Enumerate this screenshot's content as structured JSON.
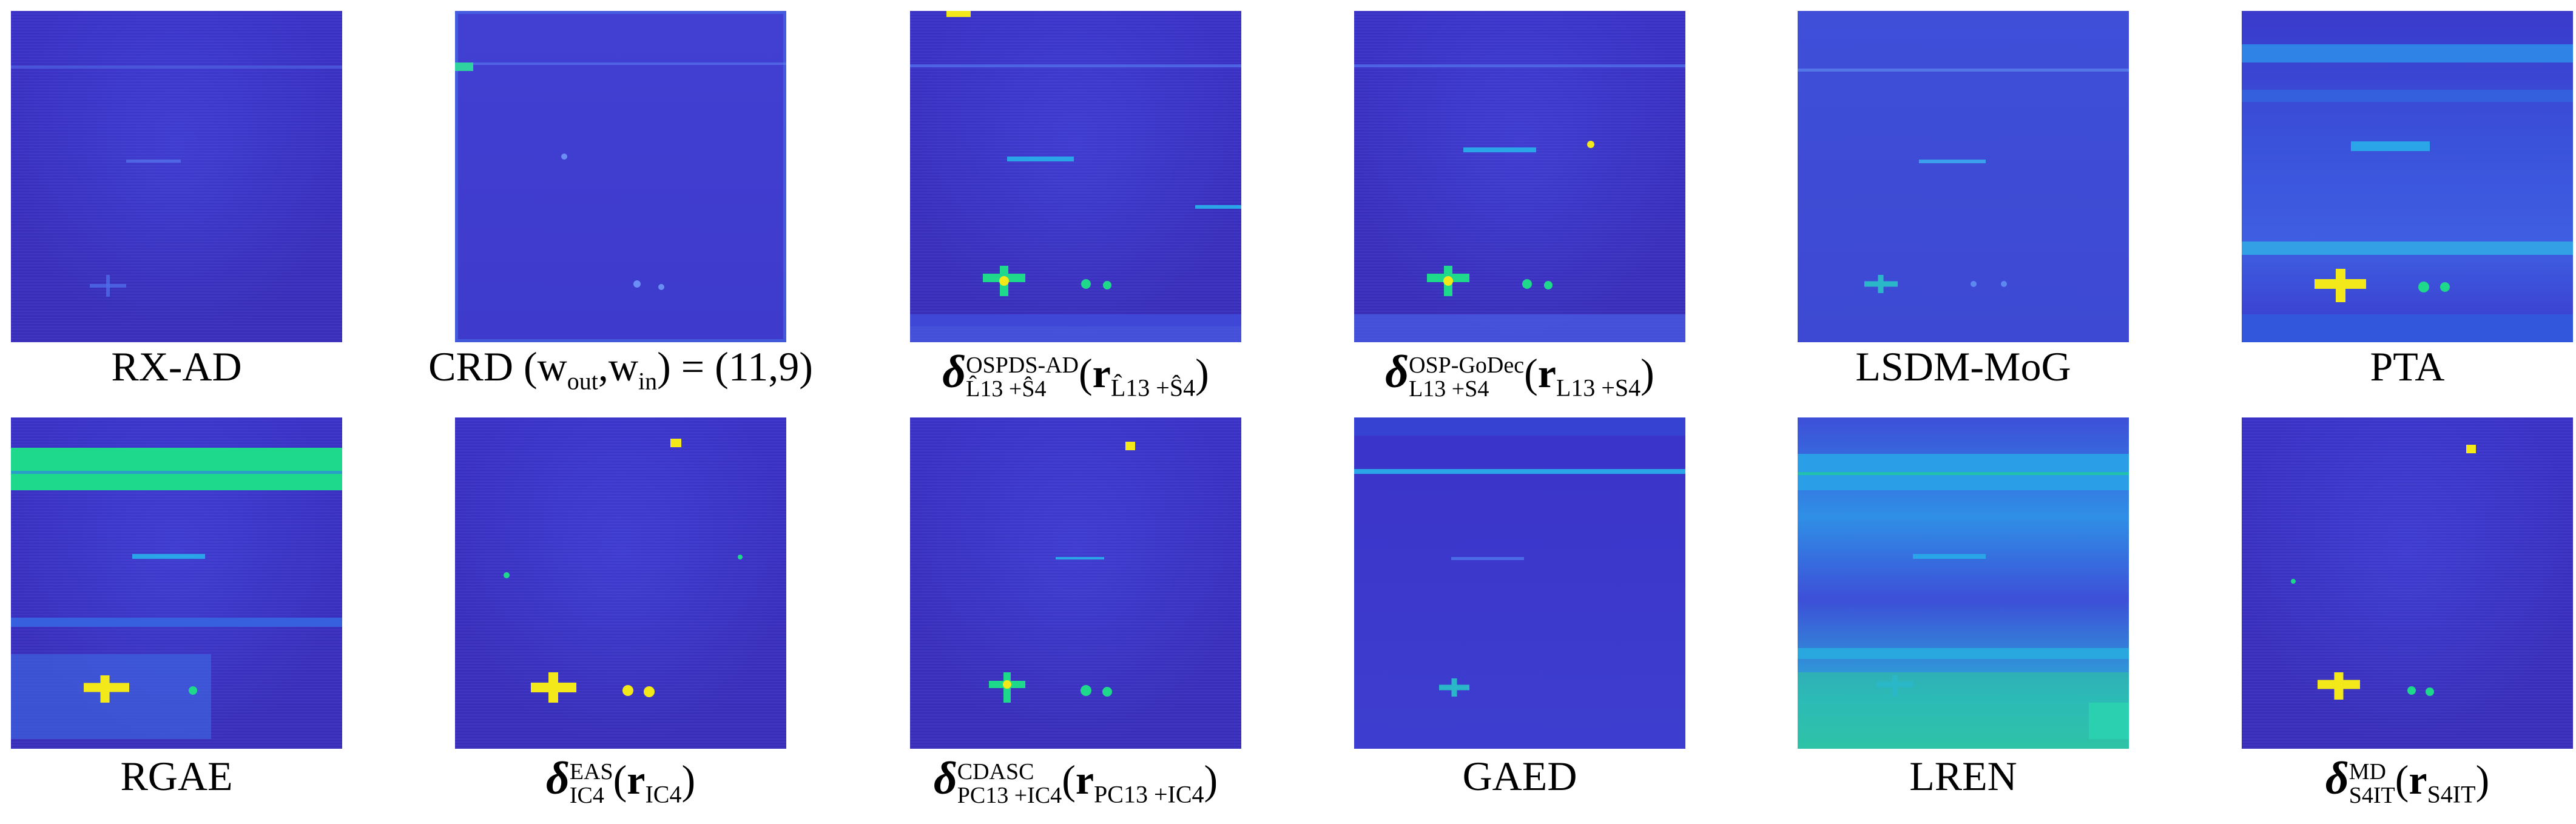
{
  "colors": {
    "background": "#3b33c9",
    "light_blue": "#2aa0e6",
    "green": "#1ed88b",
    "yellow": "#f2e81a"
  },
  "captions": {
    "rxad": "RX-AD",
    "crd_name": "CRD",
    "crd_params": "(w",
    "crd_out": "out",
    "crd_comma": ",w",
    "crd_in": "in",
    "crd_value": ") = (11,9)",
    "ospds_sup": "OSPDS-AD",
    "ospds_sub": "L̂13 +Ŝ4",
    "ospgodec_sup": "OSP-GoDec",
    "ospgodec_sub": "L13 +S4",
    "lsdm": "LSDM-MoG",
    "pta": "PTA",
    "rgae": "RGAE",
    "eas_sup": "EAS",
    "eas_sub": "IC4",
    "cdasc_sup": "CDASC",
    "cdasc_sub": "PC13 +IC4",
    "gaed": "GAED",
    "lren": "LREN",
    "md_sup": "MD",
    "md_sub": "S4IT",
    "delta": "δ",
    "r": "r",
    "open": "(",
    "close": ")"
  }
}
